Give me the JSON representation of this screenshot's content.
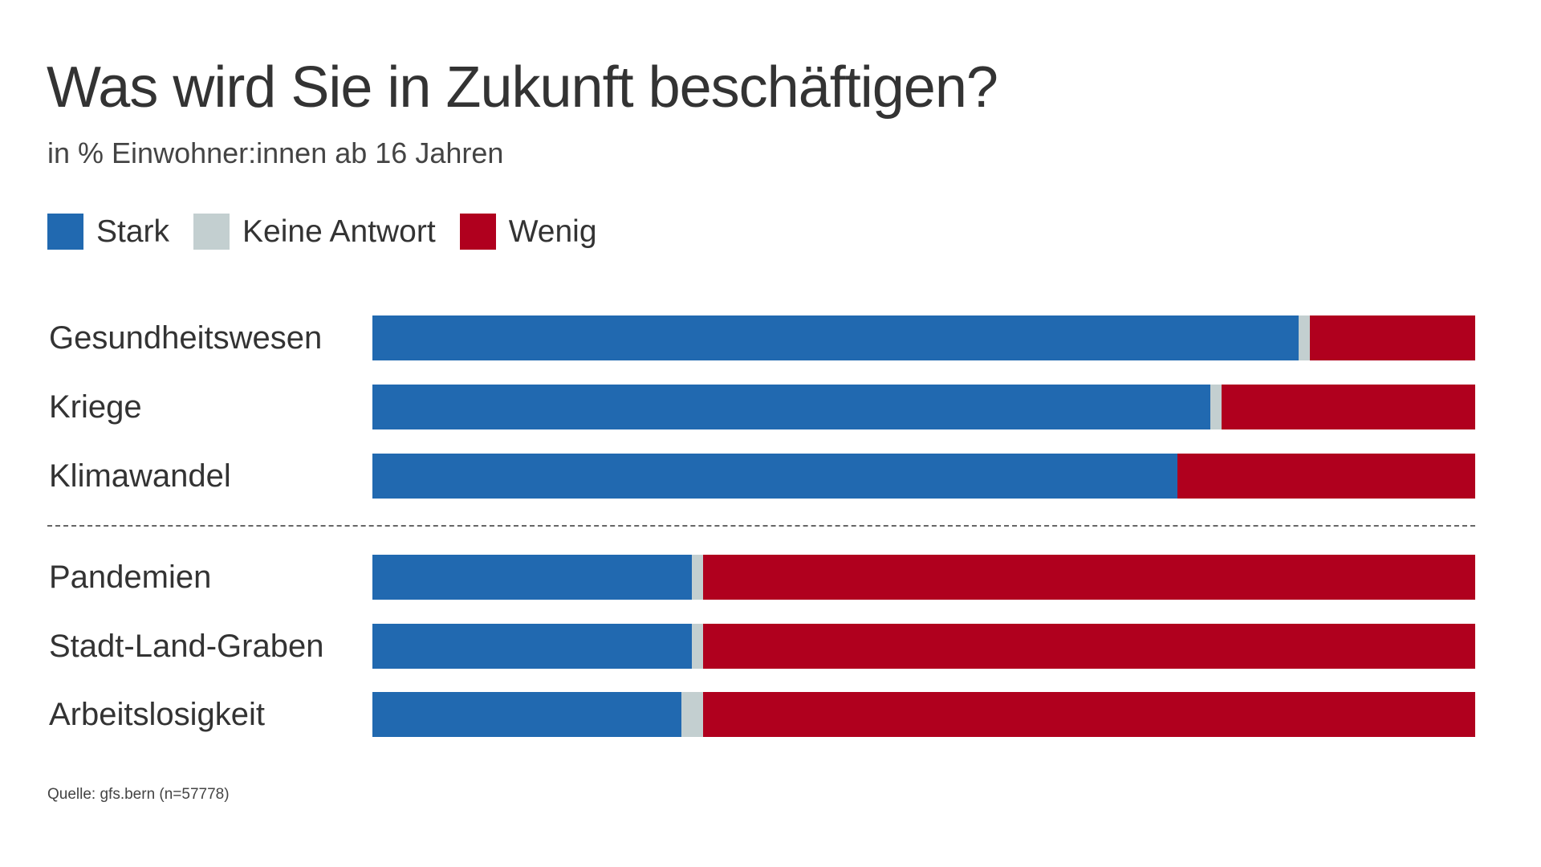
{
  "chart_data": {
    "type": "bar",
    "orientation": "horizontal",
    "stacked": true,
    "title": "Was wird Sie in Zukunft beschäftigen?",
    "subtitle": "in % Einwohner:innen ab 16 Jahren",
    "source": "Quelle: gfs.bern (n=57778)",
    "xlim": [
      0,
      100
    ],
    "legend_placement": "top-left",
    "categories": [
      "Gesundheitswesen",
      "Kriege",
      "Klimawandel",
      "Pandemien",
      "Stadt-Land-Graben",
      "Arbeitslosigkeit"
    ],
    "series": [
      {
        "name": "Stark",
        "color": "#2169b0",
        "values": [
          84,
          76,
          73,
          29,
          29,
          28
        ]
      },
      {
        "name": "Keine Antwort",
        "color": "#c3cfd0",
        "values": [
          1,
          1,
          0,
          1,
          1,
          2
        ]
      },
      {
        "name": "Wenig",
        "color": "#b0001e",
        "values": [
          15,
          23,
          27,
          70,
          70,
          70
        ]
      }
    ],
    "group_divider_after_index": 2
  }
}
